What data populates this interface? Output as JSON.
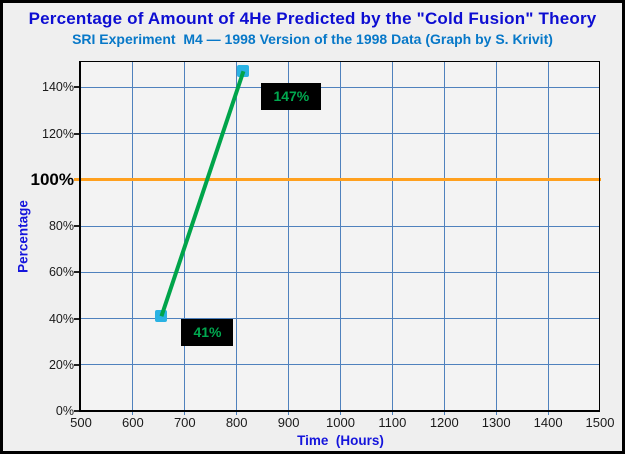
{
  "chart_data": {
    "type": "line",
    "title": "Percentage of Amount of 4He Predicted by the \"Cold Fusion\" Theory",
    "subtitle": "SRI Experiment  M4 — 1998 Version of the 1998 Data (Graph by S. Krivit)",
    "x_axis": {
      "label": "Time  (Hours)",
      "min": 500,
      "max": 1500,
      "ticks": [
        500,
        600,
        700,
        800,
        900,
        1000,
        1100,
        1200,
        1300,
        1400,
        1500
      ],
      "gridlines": [
        600,
        700,
        800,
        900,
        1000,
        1100,
        1200,
        1300,
        1400
      ]
    },
    "y_axis": {
      "label": "Percentage",
      "range": [
        0,
        151
      ],
      "ticks": [
        {
          "value": 0,
          "label": "0%"
        },
        {
          "value": 20,
          "label": "20%"
        },
        {
          "value": 40,
          "label": "40%"
        },
        {
          "value": 60,
          "label": "60%"
        },
        {
          "value": 80,
          "label": "80%"
        },
        {
          "value": 100,
          "label": "100%",
          "emphasis": true
        },
        {
          "value": 120,
          "label": "120%"
        },
        {
          "value": 140,
          "label": "140%"
        }
      ]
    },
    "reference_line": {
      "value": 100,
      "color": "#ffa01e"
    },
    "series": [
      {
        "name": "predicted-4he",
        "line_color": "#00a44a",
        "marker_color": "#29b2e3",
        "points": [
          {
            "x": 655,
            "y": 41,
            "label": "41%",
            "label_offset": {
              "dx": 20,
              "dy": 3
            }
          },
          {
            "x": 813,
            "y": 147,
            "label": "147%",
            "label_offset": {
              "dx": 18,
              "dy": 12
            }
          }
        ]
      }
    ],
    "grid": true,
    "gridline_color": "#4f81bd",
    "legend_position": "none",
    "colors": {
      "title": "#0d0dd2",
      "subtitle": "#0778c8",
      "axis_titles": "#1515dc",
      "plot_background": "#f3f3f3",
      "outer_background": "#efefef",
      "label_box_bg": "#000000",
      "label_box_text": "#00a84f"
    }
  }
}
